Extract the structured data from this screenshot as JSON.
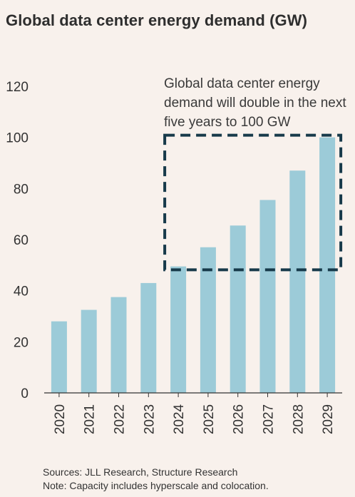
{
  "chart_data": {
    "type": "bar",
    "title": "Global data center energy demand (GW)",
    "categories": [
      "2020",
      "2021",
      "2022",
      "2023",
      "2024",
      "2025",
      "2026",
      "2027",
      "2028",
      "2029"
    ],
    "values": [
      28,
      32.5,
      37.5,
      43,
      49.5,
      57,
      65.5,
      75.5,
      87,
      100
    ],
    "ylim": [
      0,
      120
    ],
    "yticks": [
      0,
      20,
      40,
      60,
      80,
      100,
      120
    ],
    "xlabel": "",
    "ylabel": "",
    "grid": false,
    "bar_color": "#9ccbd8",
    "annotation": {
      "text": "Global data center energy demand will double in the next five years to 100 GW",
      "box_from_category": "2024",
      "box_to_category": "2029",
      "box_y_range": [
        49,
        100
      ],
      "box_color": "#173a4a"
    }
  },
  "footer": {
    "sources": "Sources: JLL Research, Structure Research",
    "note": "Note: Capacity includes hyperscale and colocation."
  },
  "colors": {
    "background": "#f8f1ec",
    "bar": "#9ccbd8",
    "box": "#173a4a",
    "axis": "#333333"
  }
}
